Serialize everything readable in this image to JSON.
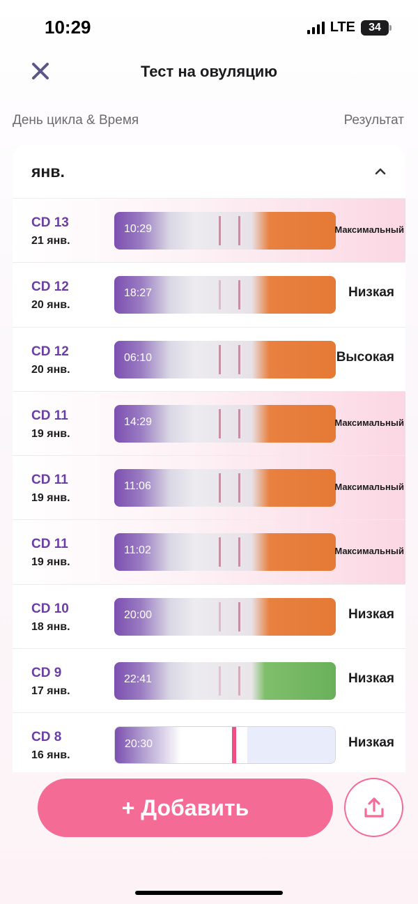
{
  "status_bar": {
    "time": "10:29",
    "network": "LTE",
    "battery": "34"
  },
  "header": {
    "title": "Тест на овуляцию"
  },
  "columns": {
    "left": "День цикла & Время",
    "right": "Результат"
  },
  "month": {
    "label": "янв."
  },
  "entries": [
    {
      "cd": "CD 13",
      "date": "21 янв.",
      "time": "10:29",
      "result": "Максимальный"
    },
    {
      "cd": "CD 12",
      "date": "20 янв.",
      "time": "18:27",
      "result": "Низкая"
    },
    {
      "cd": "CD 12",
      "date": "20 янв.",
      "time": "06:10",
      "result": "Высокая"
    },
    {
      "cd": "CD 11",
      "date": "19 янв.",
      "time": "14:29",
      "result": "Максимальный"
    },
    {
      "cd": "CD 11",
      "date": "19 янв.",
      "time": "11:06",
      "result": "Максимальный"
    },
    {
      "cd": "CD 11",
      "date": "19 янв.",
      "time": "11:02",
      "result": "Максимальный"
    },
    {
      "cd": "CD 10",
      "date": "18 янв.",
      "time": "20:00",
      "result": "Низкая"
    },
    {
      "cd": "CD 9",
      "date": "17 янв.",
      "time": "22:41",
      "result": "Низкая"
    },
    {
      "cd": "CD 8",
      "date": "16 янв.",
      "time": "20:30",
      "result": "Низкая"
    }
  ],
  "actions": {
    "add_label": "+ Добавить"
  },
  "colors": {
    "accent": "#f46b96",
    "cd_purple": "#6a3fa5",
    "strip_purple": "#7b4fb0"
  },
  "icons": {
    "close": "close-icon",
    "collapse": "chevron-up-icon",
    "share": "share-icon"
  }
}
